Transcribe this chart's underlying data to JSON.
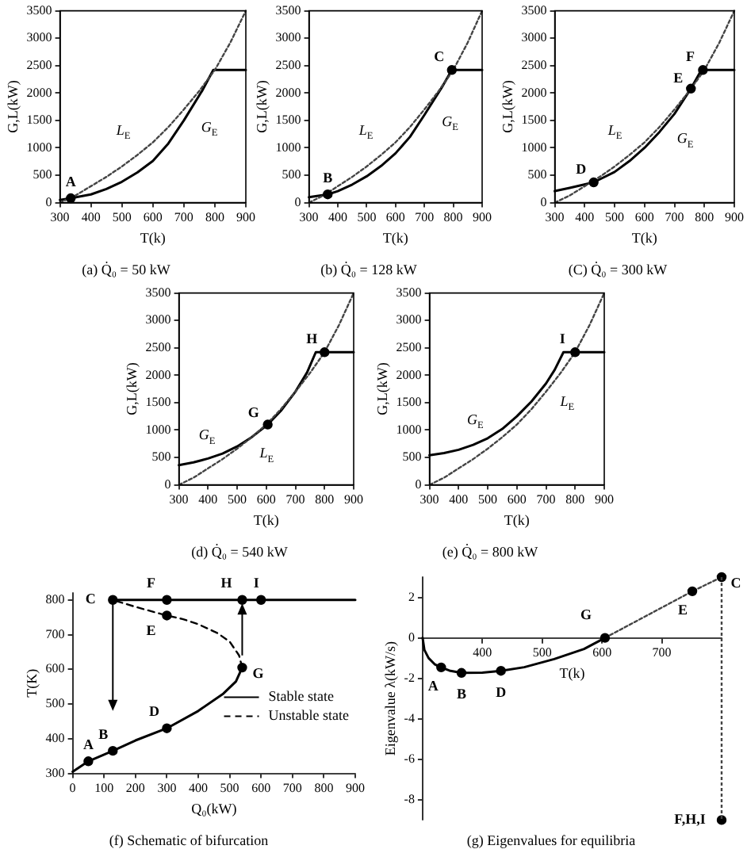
{
  "chart_data": [
    {
      "type": "line",
      "title": "(a) Q̇₀ = 50 kW",
      "xlabel": "T(k)",
      "ylabel": "G,L(kW)",
      "xlim": [
        300,
        900
      ],
      "ylim": [
        0,
        3500
      ],
      "xticks": [
        300,
        400,
        500,
        600,
        700,
        800,
        900
      ],
      "yticks": [
        0,
        500,
        1000,
        1500,
        2000,
        2500,
        3000,
        3500
      ],
      "series": [
        {
          "name": "L$_{E}$",
          "color": "#444444",
          "line_style": "dotted",
          "marker": "none",
          "x": [
            300,
            350,
            400,
            450,
            500,
            550,
            600,
            650,
            700,
            750,
            800,
            850,
            900
          ],
          "values": [
            0,
            130,
            300,
            470,
            660,
            870,
            1100,
            1380,
            1700,
            2040,
            2420,
            2920,
            3500
          ]
        },
        {
          "name": "G$_{E}$",
          "color": "#000000",
          "line_style": "solid",
          "marker": "none",
          "x": [
            300,
            335,
            400,
            450,
            500,
            550,
            600,
            650,
            700,
            760,
            795,
            900
          ],
          "values": [
            50,
            80,
            150,
            250,
            380,
            550,
            760,
            1080,
            1500,
            2050,
            2420,
            2420
          ]
        },
        {
          "type": "scatter",
          "color": "#000000",
          "marker": "circle",
          "x": [
            335
          ],
          "values": [
            80
          ]
        }
      ],
      "annotations": [
        {
          "text": "A",
          "x": 335,
          "y": 80
        }
      ]
    },
    {
      "type": "line",
      "title": "(b) Q̇₀ = 128 kW",
      "xlabel": "T(k)",
      "ylabel": "G,L(kW)",
      "xlim": [
        300,
        900
      ],
      "ylim": [
        0,
        3500
      ],
      "xticks": [
        300,
        400,
        500,
        600,
        700,
        800,
        900
      ],
      "yticks": [
        0,
        500,
        1000,
        1500,
        2000,
        2500,
        3000,
        3500
      ],
      "series": [
        {
          "name": "L$_{E}$",
          "color": "#444444",
          "line_style": "dotted",
          "marker": "none",
          "x": [
            300,
            350,
            400,
            450,
            500,
            550,
            600,
            650,
            700,
            750,
            800,
            850,
            900
          ],
          "values": [
            0,
            130,
            300,
            470,
            660,
            870,
            1100,
            1380,
            1700,
            2040,
            2420,
            2920,
            3500
          ]
        },
        {
          "name": "G$_{E}$",
          "color": "#000000",
          "line_style": "solid",
          "marker": "none",
          "x": [
            300,
            365,
            400,
            450,
            500,
            550,
            600,
            650,
            700,
            760,
            795,
            900
          ],
          "values": [
            100,
            150,
            210,
            330,
            480,
            670,
            900,
            1200,
            1600,
            2100,
            2420,
            2420
          ]
        },
        {
          "type": "scatter",
          "color": "#000000",
          "marker": "circle",
          "x": [
            365,
            795
          ],
          "values": [
            150,
            2420
          ]
        }
      ],
      "annotations": [
        {
          "text": "B",
          "x": 365,
          "y": 150
        },
        {
          "text": "C",
          "x": 795,
          "y": 2420
        }
      ]
    },
    {
      "type": "line",
      "title": "(C) Q̇₀ = 300 kW",
      "xlabel": "T(k)",
      "ylabel": "G,L(kW)",
      "xlim": [
        300,
        900
      ],
      "ylim": [
        0,
        3500
      ],
      "xticks": [
        300,
        400,
        500,
        600,
        700,
        800,
        900
      ],
      "yticks": [
        0,
        500,
        1000,
        1500,
        2000,
        2500,
        3000,
        3500
      ],
      "series": [
        {
          "name": "L$_{E}$",
          "color": "#444444",
          "line_style": "dotted",
          "marker": "none",
          "x": [
            300,
            350,
            400,
            450,
            500,
            550,
            600,
            650,
            700,
            750,
            800,
            850,
            900
          ],
          "values": [
            0,
            130,
            300,
            470,
            660,
            870,
            1100,
            1380,
            1700,
            2040,
            2420,
            2920,
            3500
          ]
        },
        {
          "name": "G$_{E}$",
          "color": "#000000",
          "line_style": "solid",
          "marker": "none",
          "x": [
            300,
            350,
            430,
            500,
            550,
            600,
            650,
            700,
            755,
            790,
            900
          ],
          "values": [
            210,
            270,
            370,
            560,
            760,
            1000,
            1290,
            1620,
            2080,
            2420,
            2420
          ]
        },
        {
          "type": "scatter",
          "color": "#000000",
          "marker": "circle",
          "x": [
            430,
            755,
            795
          ],
          "values": [
            370,
            2080,
            2420
          ]
        }
      ],
      "annotations": [
        {
          "text": "D",
          "x": 430,
          "y": 370
        },
        {
          "text": "E",
          "x": 755,
          "y": 2080
        },
        {
          "text": "F",
          "x": 795,
          "y": 2420
        }
      ]
    },
    {
      "type": "line",
      "title": "(d) Q̇₀ = 540 kW",
      "xlabel": "T(k)",
      "ylabel": "G,L(kW)",
      "xlim": [
        300,
        900
      ],
      "ylim": [
        0,
        3500
      ],
      "xticks": [
        300,
        400,
        500,
        600,
        700,
        800,
        900
      ],
      "yticks": [
        0,
        500,
        1000,
        1500,
        2000,
        2500,
        3000,
        3500
      ],
      "series": [
        {
          "name": "L$_{E}$",
          "color": "#444444",
          "line_style": "dotted",
          "marker": "none",
          "x": [
            300,
            350,
            400,
            450,
            500,
            550,
            600,
            650,
            700,
            750,
            800,
            850,
            900
          ],
          "values": [
            0,
            130,
            300,
            470,
            660,
            870,
            1100,
            1380,
            1700,
            2040,
            2420,
            2920,
            3500
          ]
        },
        {
          "name": "G$_{E}$",
          "color": "#000000",
          "line_style": "solid",
          "marker": "none",
          "x": [
            300,
            350,
            400,
            450,
            500,
            550,
            605,
            650,
            700,
            740,
            770,
            900
          ],
          "values": [
            360,
            410,
            480,
            570,
            700,
            870,
            1100,
            1350,
            1700,
            2050,
            2420,
            2420
          ]
        },
        {
          "type": "scatter",
          "color": "#000000",
          "marker": "circle",
          "x": [
            605,
            800
          ],
          "values": [
            1100,
            2420
          ]
        }
      ],
      "annotations": [
        {
          "text": "G",
          "x": 605,
          "y": 1100
        },
        {
          "text": "H",
          "x": 800,
          "y": 2420
        }
      ]
    },
    {
      "type": "line",
      "title": "(e) Q̇₀ = 800 kW",
      "xlabel": "T(k)",
      "ylabel": "G,L(kW)",
      "xlim": [
        300,
        900
      ],
      "ylim": [
        0,
        3500
      ],
      "xticks": [
        300,
        400,
        500,
        600,
        700,
        800,
        900
      ],
      "yticks": [
        0,
        500,
        1000,
        1500,
        2000,
        2500,
        3000,
        3500
      ],
      "series": [
        {
          "name": "L$_{E}$",
          "color": "#444444",
          "line_style": "dotted",
          "marker": "none",
          "x": [
            300,
            350,
            400,
            450,
            500,
            550,
            600,
            650,
            700,
            750,
            800,
            850,
            900
          ],
          "values": [
            0,
            130,
            300,
            470,
            660,
            870,
            1100,
            1380,
            1700,
            2040,
            2420,
            2920,
            3500
          ]
        },
        {
          "name": "G$_{E}$",
          "color": "#000000",
          "line_style": "solid",
          "marker": "none",
          "x": [
            300,
            350,
            400,
            450,
            500,
            550,
            600,
            650,
            700,
            730,
            760,
            900
          ],
          "values": [
            540,
            580,
            640,
            730,
            850,
            1020,
            1250,
            1520,
            1850,
            2100,
            2420,
            2420
          ]
        },
        {
          "type": "scatter",
          "color": "#000000",
          "marker": "circle",
          "x": [
            800
          ],
          "values": [
            2420
          ]
        }
      ],
      "annotations": [
        {
          "text": "I",
          "x": 800,
          "y": 2420
        }
      ]
    },
    {
      "type": "line",
      "title": "(f) Schematic of bifurcation",
      "xlabel": "Q₀(kW)",
      "ylabel": "T(K)",
      "xlim": [
        0,
        900
      ],
      "ylim": [
        300,
        820
      ],
      "xticks": [
        0,
        100,
        200,
        300,
        400,
        500,
        600,
        700,
        800,
        900
      ],
      "yticks": [
        300,
        400,
        500,
        600,
        700,
        800
      ],
      "legend": "bottom right",
      "series": [
        {
          "name": "Stable state",
          "color": "#000000",
          "line_style": "solid",
          "marker": "none",
          "x": [
            0,
            50,
            128,
            200,
            300,
            400,
            480,
            520,
            540
          ],
          "values": [
            305,
            335,
            365,
            395,
            430,
            480,
            530,
            565,
            605
          ]
        },
        {
          "color": "#000000",
          "line_style": "solid",
          "marker": "none",
          "x": [
            128,
            900
          ],
          "values": [
            800,
            800
          ]
        },
        {
          "name": "Unstable state",
          "color": "#000000",
          "line_style": "dashed",
          "marker": "none",
          "x": [
            540,
            530,
            500,
            460,
            400,
            350,
            300,
            200,
            128
          ],
          "values": [
            605,
            640,
            680,
            705,
            730,
            745,
            755,
            780,
            800
          ]
        },
        {
          "type": "scatter",
          "color": "#000000",
          "marker": "circle",
          "x": [
            50,
            128,
            300,
            540,
            128,
            300,
            300,
            540,
            600
          ],
          "values": [
            335,
            365,
            430,
            605,
            800,
            755,
            800,
            800,
            800
          ]
        }
      ],
      "annotations": [
        {
          "text": "A",
          "x": 50,
          "y": 335
        },
        {
          "text": "B",
          "x": 128,
          "y": 365
        },
        {
          "text": "D",
          "x": 300,
          "y": 430
        },
        {
          "text": "G",
          "x": 540,
          "y": 605
        },
        {
          "text": "C",
          "x": 128,
          "y": 800
        },
        {
          "text": "E",
          "x": 300,
          "y": 755
        },
        {
          "text": "F",
          "x": 300,
          "y": 800
        },
        {
          "text": "H",
          "x": 540,
          "y": 800
        },
        {
          "text": "I",
          "x": 600,
          "y": 800
        }
      ]
    },
    {
      "type": "line",
      "title": "(g) Eigenvalues for equilibria",
      "xlabel": "T(k)",
      "ylabel": "Eigenvalue λ(kW/s)",
      "xlim": [
        300,
        800
      ],
      "ylim": [
        -9,
        3
      ],
      "xticks": [
        400,
        500,
        600,
        700
      ],
      "yticks": [
        -8,
        -6,
        -4,
        -2,
        0,
        2
      ],
      "series": [
        {
          "color": "#000000",
          "line_style": "solid",
          "marker": "none",
          "x": [
            300,
            303,
            310,
            320,
            331,
            345,
            365,
            400,
            431,
            470,
            520,
            570,
            605
          ],
          "values": [
            0,
            -0.6,
            -1.0,
            -1.3,
            -1.46,
            -1.62,
            -1.73,
            -1.72,
            -1.63,
            -1.45,
            -1.05,
            -0.55,
            0
          ]
        },
        {
          "color": "#444444",
          "line_style": "dotted",
          "marker": "none",
          "x": [
            605,
            751,
            800
          ],
          "values": [
            0,
            2.3,
            3
          ]
        },
        {
          "type": "scatter",
          "color": "#000000",
          "marker": "circle",
          "x": [
            331,
            365,
            431,
            605,
            751,
            800,
            800
          ],
          "values": [
            -1.46,
            -1.73,
            -1.63,
            0,
            2.3,
            3,
            -9
          ]
        }
      ],
      "ref_lines": [
        {
          "axis": "x",
          "value": 800,
          "color": "#444444",
          "line_style": "dotted"
        }
      ],
      "annotations": [
        {
          "text": "A",
          "x": 331,
          "y": -1.46
        },
        {
          "text": "B",
          "x": 365,
          "y": -1.73
        },
        {
          "text": "D",
          "x": 431,
          "y": -1.63
        },
        {
          "text": "G",
          "x": 605,
          "y": 0
        },
        {
          "text": "E",
          "x": 751,
          "y": 2.3
        },
        {
          "text": "C",
          "x": 800,
          "y": 3
        },
        {
          "text": "F,H,I",
          "x": 800,
          "y": -9
        }
      ]
    }
  ]
}
